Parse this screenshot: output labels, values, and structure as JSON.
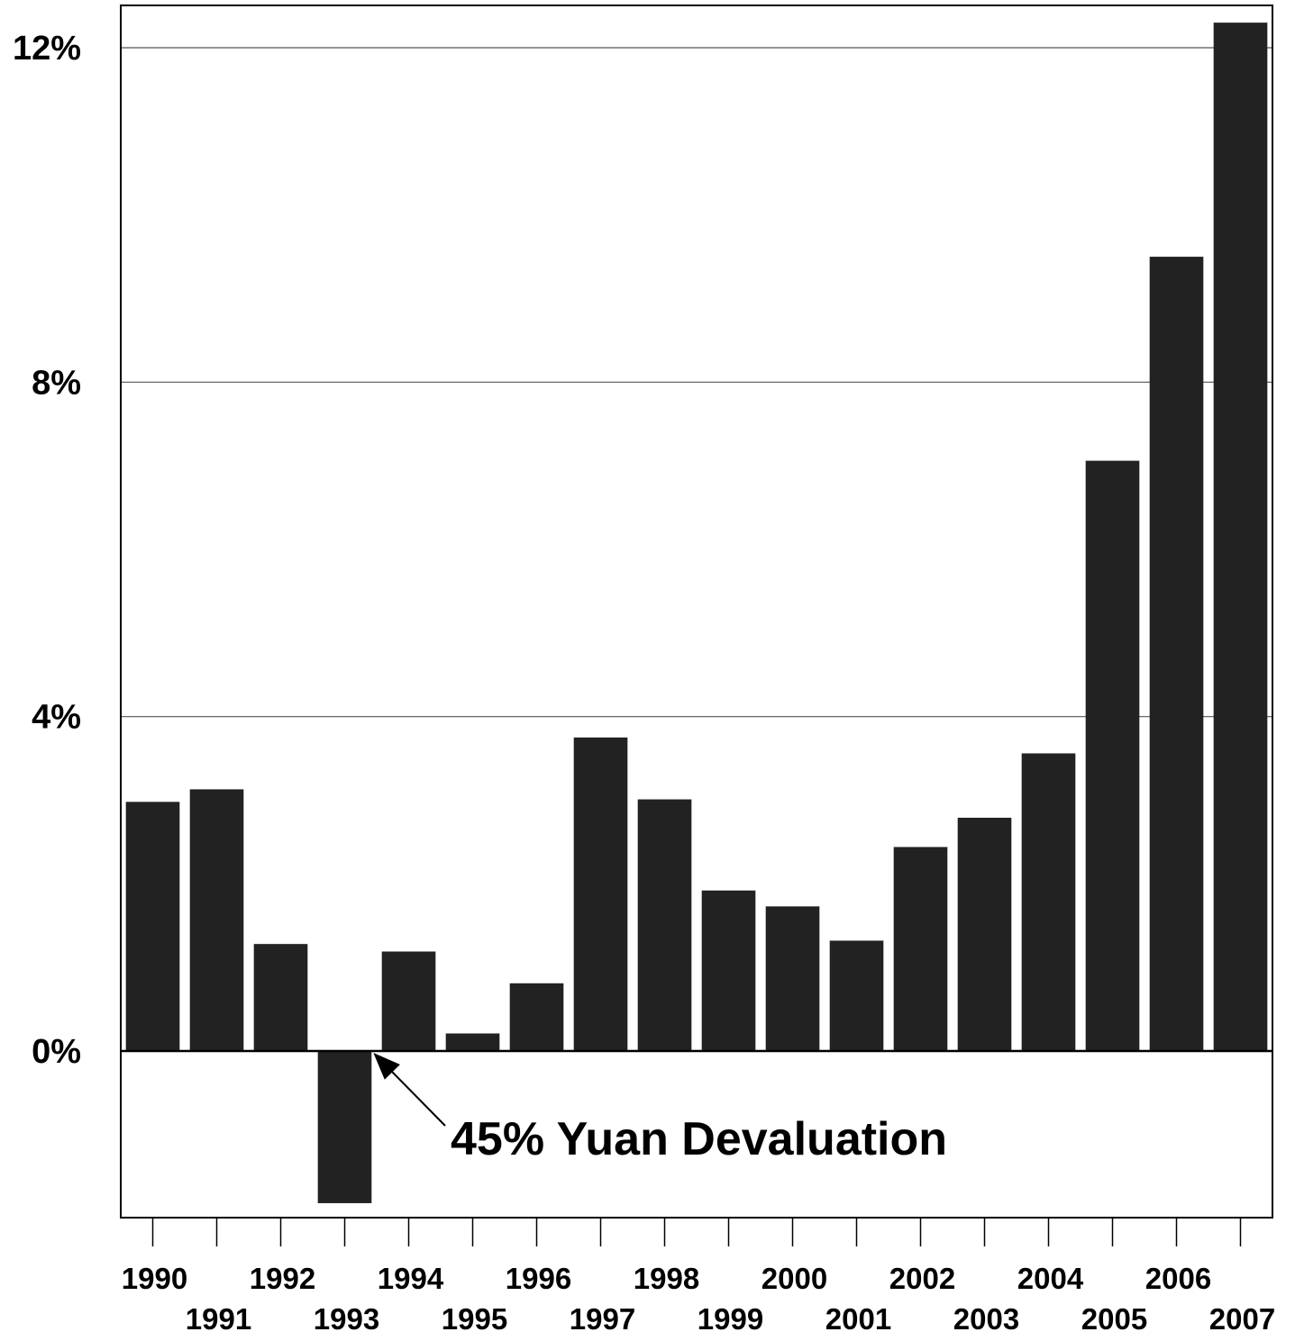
{
  "chart_data": {
    "type": "bar",
    "title": "",
    "xlabel": "",
    "ylabel": "",
    "categories": [
      "1990",
      "1991",
      "1992",
      "1993",
      "1994",
      "1995",
      "1996",
      "1997",
      "1998",
      "1999",
      "2000",
      "2001",
      "2002",
      "2003",
      "2004",
      "2005",
      "2006",
      "2007"
    ],
    "values": [
      2.98,
      3.13,
      1.28,
      -1.82,
      1.19,
      0.21,
      0.81,
      3.75,
      3.01,
      1.92,
      1.73,
      1.32,
      2.44,
      2.79,
      3.56,
      7.06,
      9.5,
      12.3
    ],
    "y_ticks": [
      0,
      4,
      8,
      12
    ],
    "y_tick_labels": [
      "0%",
      "4%",
      "8%",
      "12%"
    ],
    "ylim": [
      -2.0,
      12.5
    ],
    "grid": "horizontal",
    "legend": "none",
    "bar_color": "#222222",
    "x_label_layout": "staggered two rows",
    "annotation": {
      "text": "45% Yuan Devaluation",
      "points_to": "1993",
      "value": 0
    }
  }
}
